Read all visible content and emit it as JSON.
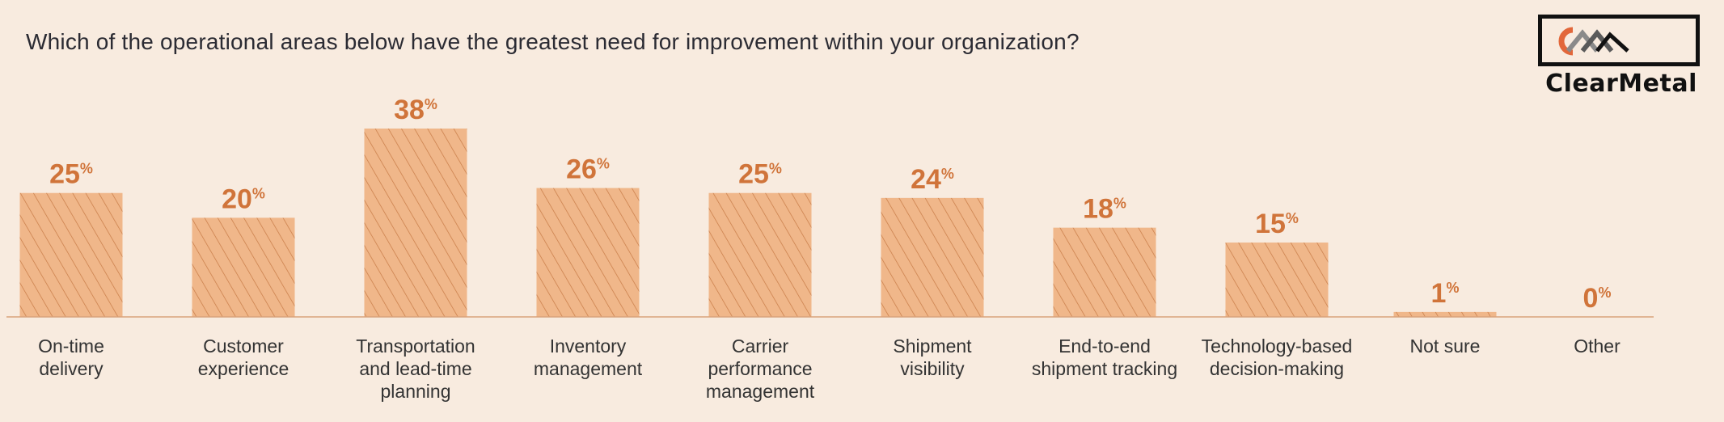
{
  "title": "Which of the operational areas below have the greatest need for improvement within your organization?",
  "logo": {
    "name": "ClearMetal"
  },
  "colors": {
    "background": "#f8ebdf",
    "bar_fill": "#f0b78a",
    "hatch": "#c77a45",
    "value_label": "#d0743a",
    "axis": "#d9a37c",
    "category_label": "#333333"
  },
  "chart_data": {
    "type": "bar",
    "title": "Which of the operational areas below have the greatest need for improvement within your organization?",
    "xlabel": "",
    "ylabel": "",
    "ylim": [
      0,
      40
    ],
    "unit": "%",
    "grid": false,
    "categories": [
      [
        "On-time",
        "delivery"
      ],
      [
        "Customer",
        "experience"
      ],
      [
        "Transportation",
        "and lead-time",
        "planning"
      ],
      [
        "Inventory",
        "management"
      ],
      [
        "Carrier",
        "performance",
        "management"
      ],
      [
        "Shipment",
        "visibility"
      ],
      [
        "End-to-end",
        "shipment tracking"
      ],
      [
        "Technology-based",
        "decision-making"
      ],
      [
        "Not sure"
      ],
      [
        "Other"
      ]
    ],
    "values": [
      25,
      20,
      38,
      26,
      25,
      24,
      18,
      15,
      1,
      0
    ]
  }
}
